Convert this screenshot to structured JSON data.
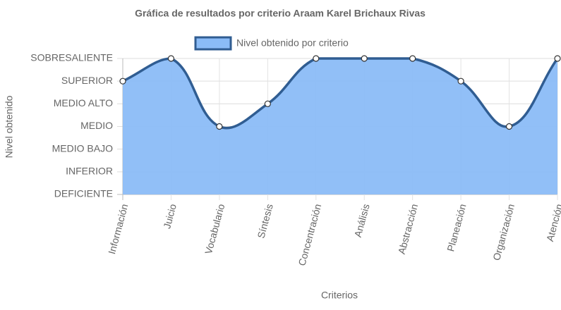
{
  "chart_data": {
    "type": "line",
    "title": "Gráfica de resultados por criterio Araam Karel Brichaux Rivas",
    "x_label": "Criterios",
    "y_label": "Nivel obtenido",
    "categories": [
      "Información",
      "Juicio",
      "Vocabulario",
      "Síntesis",
      "Concentración",
      "Análisis",
      "Abstracción",
      "Planeación",
      "Organización",
      "Atención"
    ],
    "series": [
      {
        "name": "Nivel obtenido por criterio",
        "color": "#305d92",
        "fill_color": "#8bbcf7",
        "values": [
          5,
          6,
          3,
          4,
          6,
          6,
          6,
          5,
          3,
          6
        ]
      }
    ],
    "ylim": [
      0,
      6
    ],
    "yticks": [
      {
        "value": 0,
        "label": "DEFICIENTE"
      },
      {
        "value": 1,
        "label": "INFERIOR"
      },
      {
        "value": 2,
        "label": "MEDIO BAJO"
      },
      {
        "value": 3,
        "label": "MEDIO"
      },
      {
        "value": 4,
        "label": "MEDIO ALTO"
      },
      {
        "value": 5,
        "label": "SUPERIOR"
      },
      {
        "value": 6,
        "label": "SOBRESALIENTE"
      }
    ],
    "grid": true,
    "legend": "top"
  }
}
